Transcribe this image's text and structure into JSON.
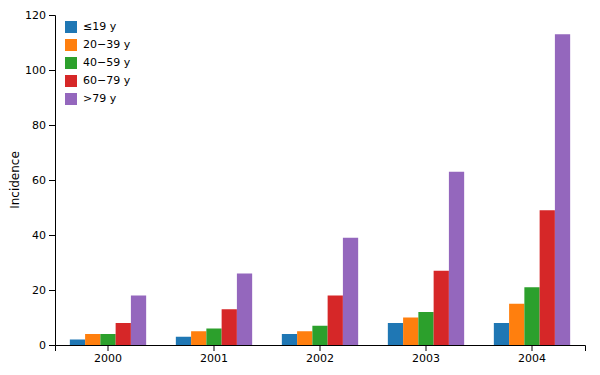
{
  "chart_data": {
    "type": "bar",
    "categories": [
      "2000",
      "2001",
      "2002",
      "2003",
      "2004"
    ],
    "series": [
      {
        "name": "≤19 y",
        "values": [
          2,
          3,
          4,
          8,
          8
        ]
      },
      {
        "name": "20−39 y",
        "values": [
          4,
          5,
          5,
          10,
          15
        ]
      },
      {
        "name": "40−59 y",
        "values": [
          4,
          6,
          7,
          12,
          21
        ]
      },
      {
        "name": "60−79 y",
        "values": [
          8,
          13,
          18,
          27,
          49
        ]
      },
      {
        "name": ">79 y",
        "values": [
          18,
          26,
          39,
          63,
          113
        ]
      }
    ],
    "ylabel": "Incidence",
    "ylim": [
      0,
      120
    ],
    "yticks": [
      0,
      20,
      40,
      60,
      80,
      100,
      120
    ],
    "grid": false,
    "legend": "upper left"
  }
}
